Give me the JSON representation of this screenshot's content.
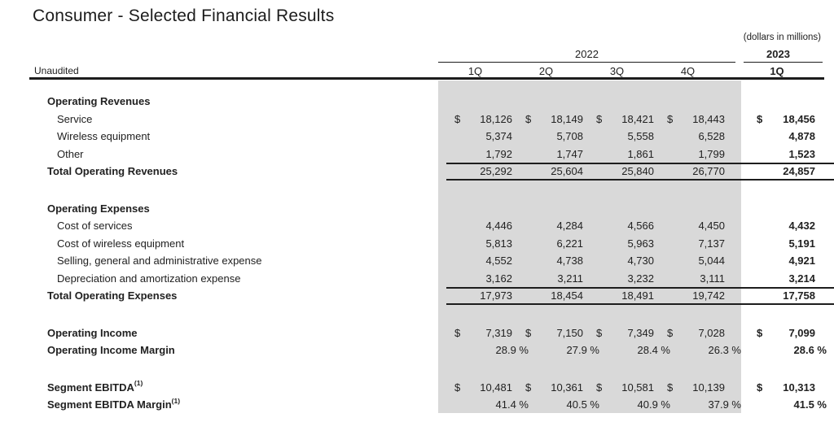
{
  "title": "Consumer - Selected Financial Results",
  "units_note": "(dollars in millions)",
  "unaudited_label": "Unaudited",
  "currency_symbol": "$",
  "header": {
    "year_2022": "2022",
    "year_2023": "2023",
    "quarters_2022": [
      "1Q",
      "2Q",
      "3Q",
      "4Q"
    ],
    "quarter_2023": "1Q"
  },
  "colors": {
    "highlight_2022": "#d9d9d9",
    "text": "#212121",
    "rule": "#1c1c1c"
  },
  "rows": [
    {
      "type": "section",
      "label": "Operating Revenues"
    },
    {
      "type": "item",
      "dollar": true,
      "label": "Service",
      "values": [
        "18,126",
        "18,149",
        "18,421",
        "18,443",
        "18,456"
      ]
    },
    {
      "type": "item",
      "label": "Wireless equipment",
      "values": [
        "5,374",
        "5,708",
        "5,558",
        "6,528",
        "4,878"
      ]
    },
    {
      "type": "item",
      "label": "Other",
      "values": [
        "1,792",
        "1,747",
        "1,861",
        "1,799",
        "1,523"
      ]
    },
    {
      "type": "total",
      "label": "Total Operating Revenues",
      "values": [
        "25,292",
        "25,604",
        "25,840",
        "26,770",
        "24,857"
      ]
    },
    {
      "type": "section",
      "gap": true,
      "label": "Operating Expenses"
    },
    {
      "type": "item",
      "label": "Cost of services",
      "values": [
        "4,446",
        "4,284",
        "4,566",
        "4,450",
        "4,432"
      ]
    },
    {
      "type": "item",
      "label": "Cost of wireless equipment",
      "values": [
        "5,813",
        "6,221",
        "5,963",
        "7,137",
        "5,191"
      ]
    },
    {
      "type": "item",
      "label": "Selling, general and administrative expense",
      "values": [
        "4,552",
        "4,738",
        "4,730",
        "5,044",
        "4,921"
      ]
    },
    {
      "type": "item",
      "label": "Depreciation and amortization expense",
      "values": [
        "3,162",
        "3,211",
        "3,232",
        "3,111",
        "3,214"
      ]
    },
    {
      "type": "total",
      "label": "Total Operating Expenses",
      "values": [
        "17,973",
        "18,454",
        "18,491",
        "19,742",
        "17,758"
      ]
    },
    {
      "type": "bold",
      "gap": true,
      "dollar": true,
      "label": "Operating Income",
      "values": [
        "7,319",
        "7,150",
        "7,349",
        "7,028",
        "7,099"
      ]
    },
    {
      "type": "bold",
      "pct": true,
      "label": "Operating Income Margin",
      "values": [
        "28.9 %",
        "27.9 %",
        "28.4 %",
        "26.3 %",
        "28.6 %"
      ]
    },
    {
      "type": "bold",
      "gap": true,
      "dollar": true,
      "label": "Segment EBITDA",
      "sup": "(1)",
      "values": [
        "10,481",
        "10,361",
        "10,581",
        "10,139",
        "10,313"
      ]
    },
    {
      "type": "bold",
      "pct": true,
      "label": "Segment EBITDA Margin",
      "sup": "(1)",
      "values": [
        "41.4 %",
        "40.5 %",
        "40.9 %",
        "37.9 %",
        "41.5 %"
      ]
    }
  ]
}
